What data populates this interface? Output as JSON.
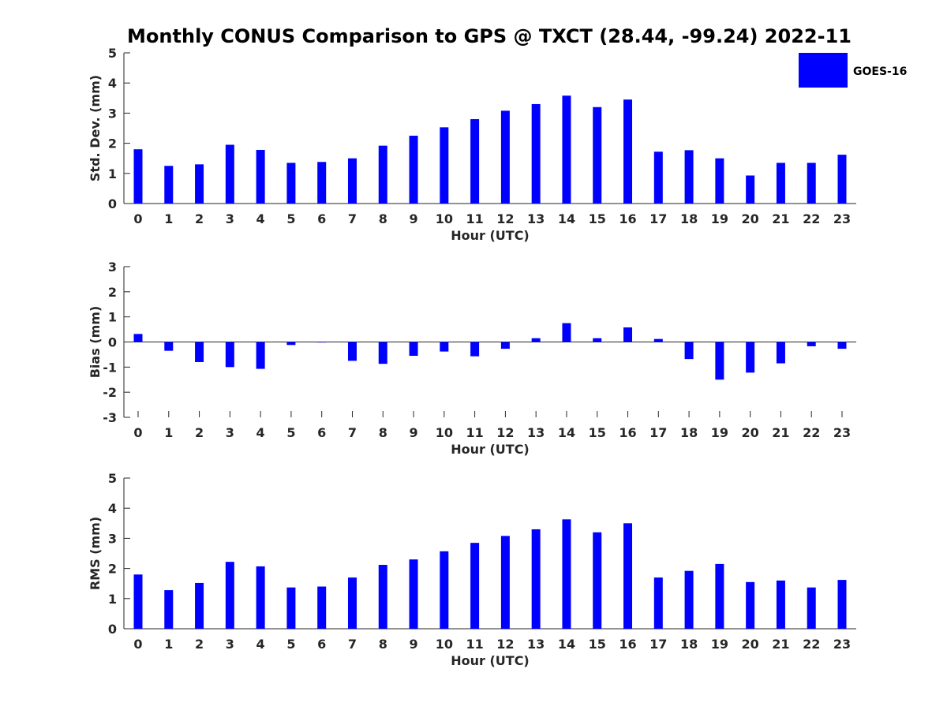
{
  "title": "Monthly CONUS Comparison to GPS @ TXCT (28.44, -99.24) 2022-11",
  "legend": {
    "label": "GOES-16",
    "color": "#0000ff"
  },
  "bar_color": "#0000ff",
  "chart_data": [
    {
      "type": "bar",
      "categories": [
        "0",
        "1",
        "2",
        "3",
        "4",
        "5",
        "6",
        "7",
        "8",
        "9",
        "10",
        "11",
        "12",
        "13",
        "14",
        "15",
        "16",
        "17",
        "18",
        "19",
        "20",
        "21",
        "22",
        "23"
      ],
      "series": [
        {
          "name": "GOES-16",
          "values": [
            1.8,
            1.25,
            1.3,
            1.95,
            1.78,
            1.35,
            1.38,
            1.5,
            1.92,
            2.25,
            2.53,
            2.8,
            3.08,
            3.3,
            3.58,
            3.2,
            3.45,
            1.72,
            1.77,
            1.5,
            0.93,
            1.35,
            1.35,
            1.62
          ]
        }
      ],
      "xlabel": "Hour (UTC)",
      "ylabel": "Std. Dev. (mm)",
      "ylim": [
        0,
        5
      ],
      "yticks": [
        "0",
        "1",
        "2",
        "3",
        "4",
        "5"
      ]
    },
    {
      "type": "bar",
      "categories": [
        "0",
        "1",
        "2",
        "3",
        "4",
        "5",
        "6",
        "7",
        "8",
        "9",
        "10",
        "11",
        "12",
        "13",
        "14",
        "15",
        "16",
        "17",
        "18",
        "19",
        "20",
        "21",
        "22",
        "23"
      ],
      "series": [
        {
          "name": "GOES-16",
          "values": [
            0.32,
            -0.35,
            -0.8,
            -1.0,
            -1.07,
            -0.12,
            -0.02,
            -0.75,
            -0.87,
            -0.55,
            -0.38,
            -0.57,
            -0.27,
            0.15,
            0.75,
            0.15,
            0.58,
            0.12,
            -0.68,
            -1.5,
            -1.22,
            -0.85,
            -0.17,
            -0.27
          ]
        }
      ],
      "xlabel": "Hour (UTC)",
      "ylabel": "Bias (mm)",
      "ylim": [
        -3,
        3
      ],
      "yticks": [
        "-3",
        "-2",
        "-1",
        "0",
        "1",
        "2",
        "3"
      ]
    },
    {
      "type": "bar",
      "categories": [
        "0",
        "1",
        "2",
        "3",
        "4",
        "5",
        "6",
        "7",
        "8",
        "9",
        "10",
        "11",
        "12",
        "13",
        "14",
        "15",
        "16",
        "17",
        "18",
        "19",
        "20",
        "21",
        "22",
        "23"
      ],
      "series": [
        {
          "name": "GOES-16",
          "values": [
            1.8,
            1.28,
            1.52,
            2.22,
            2.07,
            1.37,
            1.4,
            1.7,
            2.12,
            2.3,
            2.57,
            2.85,
            3.08,
            3.3,
            3.63,
            3.2,
            3.5,
            1.7,
            1.92,
            2.15,
            1.55,
            1.6,
            1.37,
            1.62
          ]
        }
      ],
      "xlabel": "Hour (UTC)",
      "ylabel": "RMS (mm)",
      "ylim": [
        0,
        5
      ],
      "yticks": [
        "0",
        "1",
        "2",
        "3",
        "4",
        "5"
      ]
    }
  ]
}
